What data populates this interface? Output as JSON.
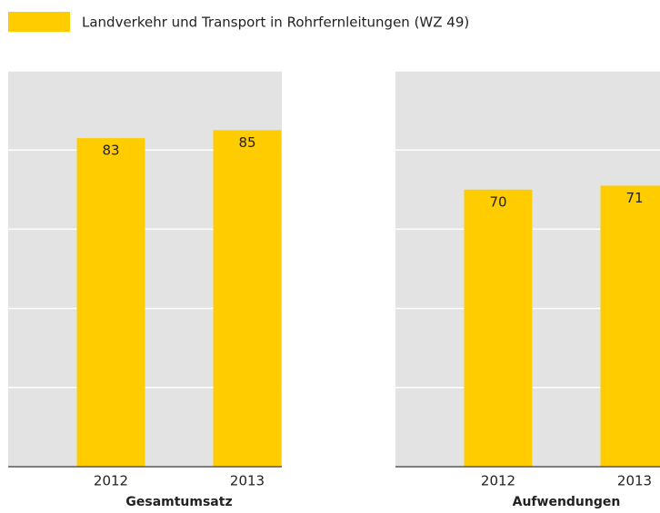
{
  "legend": {
    "name": "Landverkehr und Transport in Rohrfernleitungen (WZ 49)",
    "color": "#ffcc00"
  },
  "chart_data": [
    {
      "type": "bar",
      "title": "Gesamtumsatz",
      "categories": [
        "2012",
        "2013"
      ],
      "values": [
        83,
        85
      ],
      "color": "#ffcc00",
      "ylim": [
        0,
        100
      ],
      "yticks": [
        0,
        20,
        40,
        60,
        80,
        100
      ],
      "grid": true
    },
    {
      "type": "bar",
      "title": "Aufwendungen",
      "categories": [
        "2012",
        "2013"
      ],
      "values": [
        70,
        71
      ],
      "color": "#ffcc00",
      "ylim": [
        0,
        100
      ],
      "yticks": [
        0,
        20,
        40,
        60,
        80,
        100
      ],
      "grid": true
    }
  ]
}
